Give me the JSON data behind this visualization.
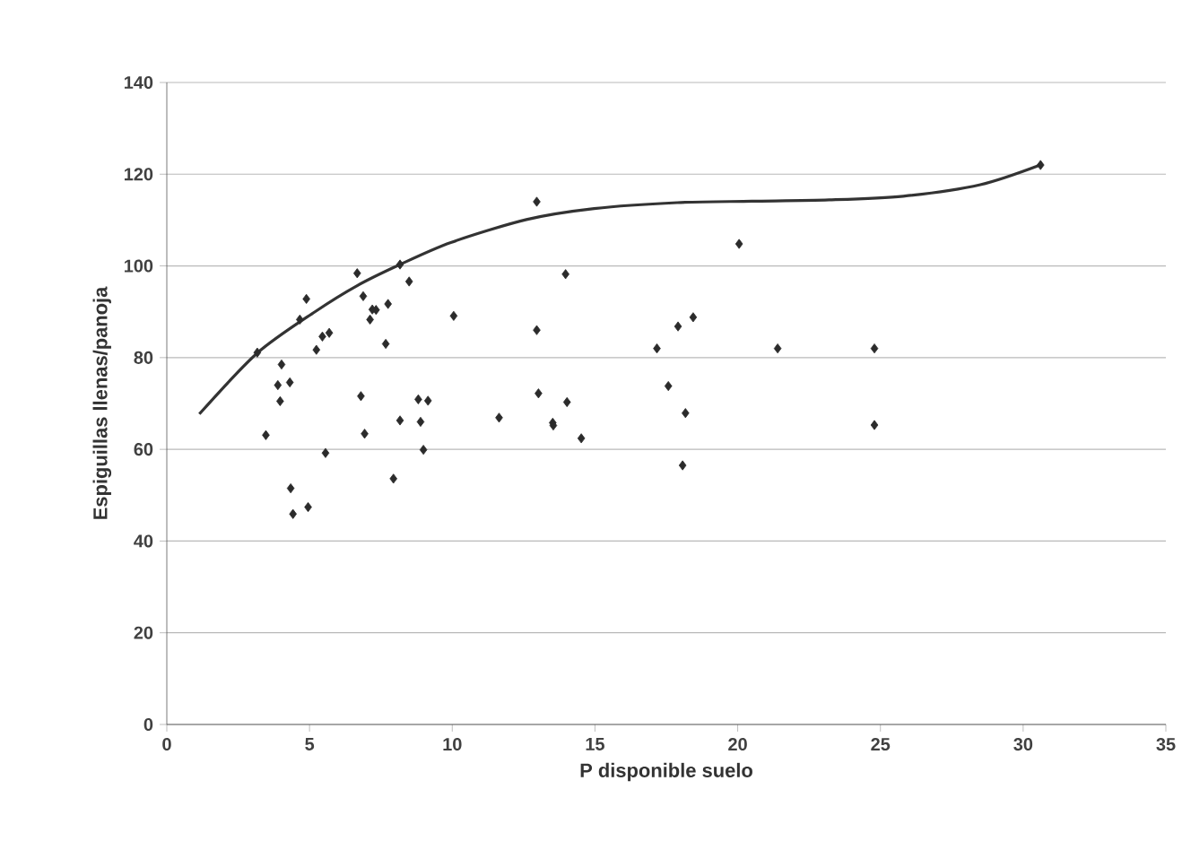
{
  "chart_data": {
    "type": "scatter",
    "xlabel": "P disponible suelo",
    "ylabel": "Espiguillas llenas/panoja",
    "xlim": [
      0,
      35
    ],
    "ylim": [
      0,
      140
    ],
    "xticks": [
      0,
      5,
      10,
      15,
      20,
      25,
      30,
      35
    ],
    "yticks": [
      0,
      20,
      40,
      60,
      80,
      100,
      120,
      140
    ],
    "grid": "y",
    "marker": "diamond",
    "series": [
      {
        "color": "#2b2b2b",
        "x": [
          3.17,
          3.47,
          4.02,
          3.89,
          3.97,
          4.31,
          4.34,
          4.42,
          4.66,
          4.89,
          4.95,
          5.24,
          5.45,
          5.69,
          5.56,
          6.67,
          6.8,
          6.88,
          6.93,
          7.12,
          7.2,
          7.33,
          7.67,
          7.75,
          7.94,
          8.17,
          8.17,
          8.49,
          8.81,
          8.89,
          8.99,
          9.15,
          10.05,
          11.64,
          12.96,
          12.96,
          13.02,
          13.52,
          13.54,
          13.97,
          14.02,
          14.52,
          17.17,
          17.57,
          17.91,
          18.07,
          18.17,
          18.44,
          20.05,
          21.4,
          24.79,
          24.79,
          30.61
        ],
        "values": [
          81.1,
          63.1,
          78.5,
          74.0,
          70.5,
          74.6,
          51.5,
          45.9,
          88.3,
          92.8,
          47.4,
          81.7,
          84.6,
          85.4,
          59.2,
          98.4,
          71.6,
          93.4,
          63.4,
          88.3,
          90.5,
          90.4,
          83.0,
          91.7,
          53.6,
          100.3,
          66.3,
          96.6,
          70.9,
          66.0,
          59.9,
          70.6,
          89.1,
          66.9,
          114.0,
          86.0,
          72.2,
          65.8,
          65.2,
          98.2,
          70.3,
          62.4,
          82.0,
          73.8,
          86.8,
          56.5,
          67.9,
          88.8,
          104.8,
          82.0,
          82.0,
          65.3,
          122.0
        ]
      },
      {
        "type": "line",
        "color": "#333333",
        "marker": "none",
        "line_style": "solid",
        "x": [
          1.14,
          3.17,
          5.19,
          6.67,
          8.17,
          9.95,
          12.6,
          14.97,
          17.88,
          20.5,
          23.2,
          25.8,
          28.5,
          30.6
        ],
        "values": [
          67.7,
          81.0,
          90.0,
          95.7,
          100.3,
          105.1,
          110.1,
          112.5,
          113.8,
          114.1,
          114.4,
          115.2,
          117.7,
          122.0
        ]
      }
    ]
  }
}
